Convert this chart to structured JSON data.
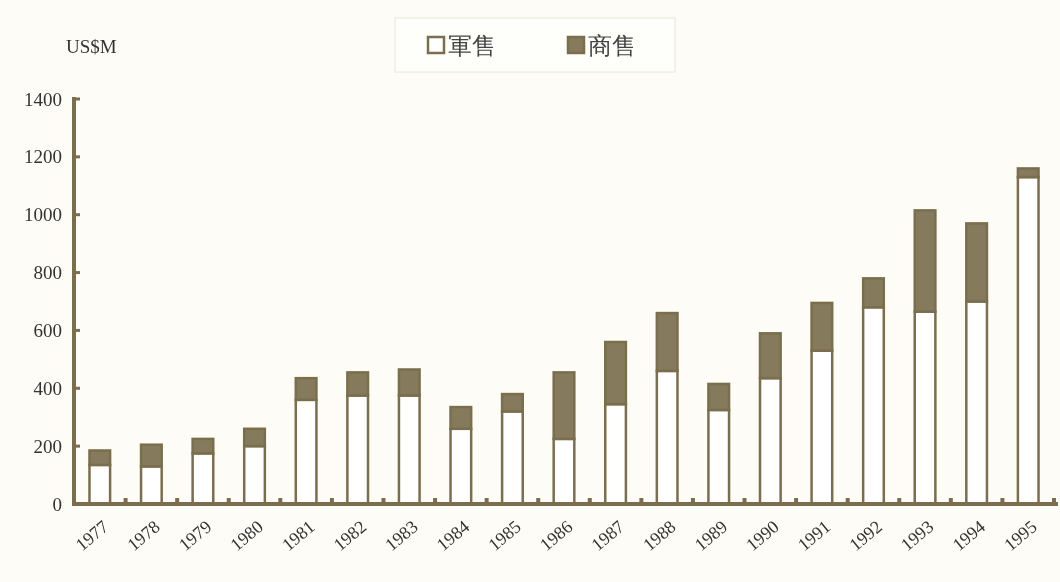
{
  "chart_data": {
    "type": "bar",
    "stacked": true,
    "ylabel": "US$M",
    "categories": [
      "1977",
      "1978",
      "1979",
      "1980",
      "1981",
      "1982",
      "1983",
      "1984",
      "1985",
      "1986",
      "1987",
      "1988",
      "1989",
      "1990",
      "1991",
      "1992",
      "1993",
      "1994",
      "1995"
    ],
    "series": [
      {
        "name": "軍售",
        "color": "#ffffff",
        "values": [
          135,
          130,
          175,
          200,
          360,
          375,
          375,
          260,
          320,
          225,
          345,
          460,
          325,
          435,
          530,
          680,
          665,
          700,
          1130
        ]
      },
      {
        "name": "商售",
        "color": "#857a5c",
        "values": [
          50,
          75,
          50,
          60,
          75,
          80,
          90,
          75,
          60,
          230,
          215,
          200,
          90,
          155,
          165,
          100,
          350,
          270,
          30
        ]
      }
    ],
    "ylim": [
      0,
      1400
    ],
    "yticks": [
      0,
      200,
      400,
      600,
      800,
      1000,
      1200,
      1400
    ],
    "legend": "top"
  }
}
